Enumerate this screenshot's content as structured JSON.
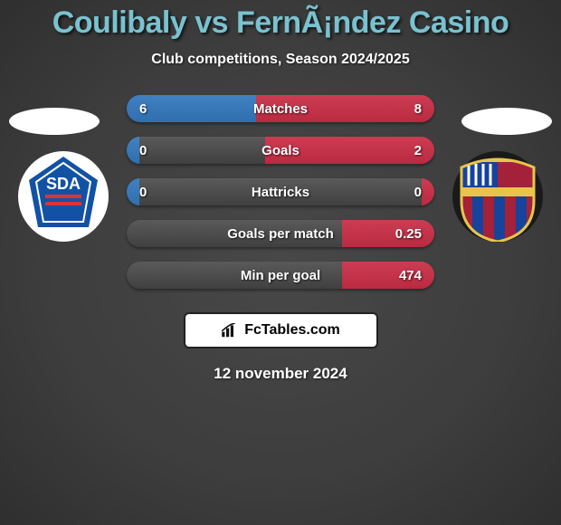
{
  "title": "Coulibaly vs FernÃ¡ndez Casino",
  "subtitle": "Club competitions, Season 2024/2025",
  "date": "12 november 2024",
  "footer_brand": "FcTables.com",
  "colors": {
    "title": "#79c2d0",
    "left_bar": "#2f6fb0",
    "right_bar": "#ba2a40",
    "track": "#4a4a4a",
    "background": "#3d3d3d"
  },
  "club_left": {
    "name": "SDA",
    "badge_bg": "#ffffff",
    "shape_fill": "#1252a5",
    "text": "SDA"
  },
  "club_right": {
    "name": "FCB",
    "outer": "#e8c54a",
    "top_left": "#16439c",
    "top_right": "#a4213a",
    "stripe_a": "#a4213a",
    "stripe_b": "#16439c"
  },
  "stats": [
    {
      "label": "Matches",
      "left_val": "6",
      "right_val": "8",
      "left_pct": 42,
      "right_pct": 58
    },
    {
      "label": "Goals",
      "left_val": "0",
      "right_val": "2",
      "left_pct": 4,
      "right_pct": 55
    },
    {
      "label": "Hattricks",
      "left_val": "0",
      "right_val": "0",
      "left_pct": 4,
      "right_pct": 4
    },
    {
      "label": "Goals per match",
      "left_val": "",
      "right_val": "0.25",
      "left_pct": 0,
      "right_pct": 30
    },
    {
      "label": "Min per goal",
      "left_val": "",
      "right_val": "474",
      "left_pct": 0,
      "right_pct": 30
    }
  ]
}
